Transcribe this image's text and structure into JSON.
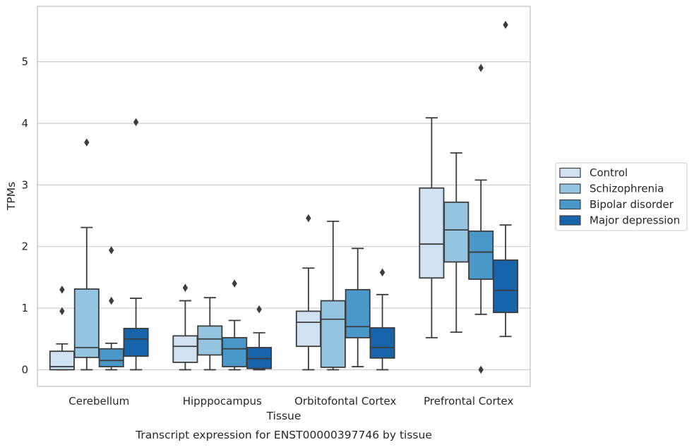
{
  "chart_data": {
    "type": "box",
    "caption": "Transcript expression for ENST00000397746 by tissue",
    "xlabel": "Tissue",
    "ylabel": "TPMs",
    "ylim": [
      -0.27,
      5.9
    ],
    "yticks": [
      0,
      1,
      2,
      3,
      4,
      5
    ],
    "grid": "horizontal",
    "legend_position": "right",
    "categories": [
      "Cerebellum",
      "Hipppocampus",
      "Orbitofontal Cortex",
      "Prefrontal Cortex"
    ],
    "series": [
      {
        "name": "Control",
        "color": "#d0e1f2",
        "boxes": [
          {
            "whislo": 0.0,
            "q1": 0.0,
            "med": 0.05,
            "q3": 0.3,
            "whishi": 0.42,
            "fliers": [
              0.95,
              1.3
            ]
          },
          {
            "whislo": 0.0,
            "q1": 0.12,
            "med": 0.38,
            "q3": 0.55,
            "whishi": 1.12,
            "fliers": [
              1.33
            ]
          },
          {
            "whislo": 0.0,
            "q1": 0.38,
            "med": 0.77,
            "q3": 0.95,
            "whishi": 1.65,
            "fliers": [
              2.46
            ]
          },
          {
            "whislo": 0.52,
            "q1": 1.49,
            "med": 2.04,
            "q3": 2.95,
            "whishi": 4.09,
            "fliers": []
          }
        ]
      },
      {
        "name": "Schizophrenia",
        "color": "#94c4df",
        "boxes": [
          {
            "whislo": 0.0,
            "q1": 0.2,
            "med": 0.36,
            "q3": 1.31,
            "whishi": 2.31,
            "fliers": [
              3.69
            ]
          },
          {
            "whislo": 0.0,
            "q1": 0.24,
            "med": 0.5,
            "q3": 0.71,
            "whishi": 1.17,
            "fliers": []
          },
          {
            "whislo": 0.0,
            "q1": 0.04,
            "med": 0.82,
            "q3": 1.12,
            "whishi": 2.41,
            "fliers": []
          },
          {
            "whislo": 0.61,
            "q1": 1.75,
            "med": 2.27,
            "q3": 2.72,
            "whishi": 3.52,
            "fliers": []
          }
        ]
      },
      {
        "name": "Bipolar disorder",
        "color": "#4a98c9",
        "boxes": [
          {
            "whislo": 0.0,
            "q1": 0.05,
            "med": 0.15,
            "q3": 0.34,
            "whishi": 0.43,
            "fliers": [
              1.12,
              1.94
            ]
          },
          {
            "whislo": 0.0,
            "q1": 0.05,
            "med": 0.34,
            "q3": 0.52,
            "whishi": 0.8,
            "fliers": [
              1.4
            ]
          },
          {
            "whislo": 0.05,
            "q1": 0.52,
            "med": 0.7,
            "q3": 1.3,
            "whishi": 1.97,
            "fliers": []
          },
          {
            "whislo": 0.9,
            "q1": 1.47,
            "med": 1.91,
            "q3": 2.25,
            "whishi": 3.08,
            "fliers": [
              0.0,
              4.9
            ]
          }
        ]
      },
      {
        "name": "Major depression",
        "color": "#1764ab",
        "boxes": [
          {
            "whislo": 0.0,
            "q1": 0.22,
            "med": 0.5,
            "q3": 0.67,
            "whishi": 1.16,
            "fliers": [
              4.02
            ]
          },
          {
            "whislo": 0.0,
            "q1": 0.02,
            "med": 0.18,
            "q3": 0.36,
            "whishi": 0.6,
            "fliers": [
              0.98
            ]
          },
          {
            "whislo": 0.0,
            "q1": 0.19,
            "med": 0.36,
            "q3": 0.68,
            "whishi": 1.22,
            "fliers": [
              1.58
            ]
          },
          {
            "whislo": 0.54,
            "q1": 0.93,
            "med": 1.29,
            "q3": 1.78,
            "whishi": 2.35,
            "fliers": [
              5.6
            ]
          }
        ]
      }
    ]
  },
  "colors": {
    "grid": "#cccccc",
    "frame": "#cccccc",
    "line": "#3d3d3d",
    "text": "#262626"
  }
}
